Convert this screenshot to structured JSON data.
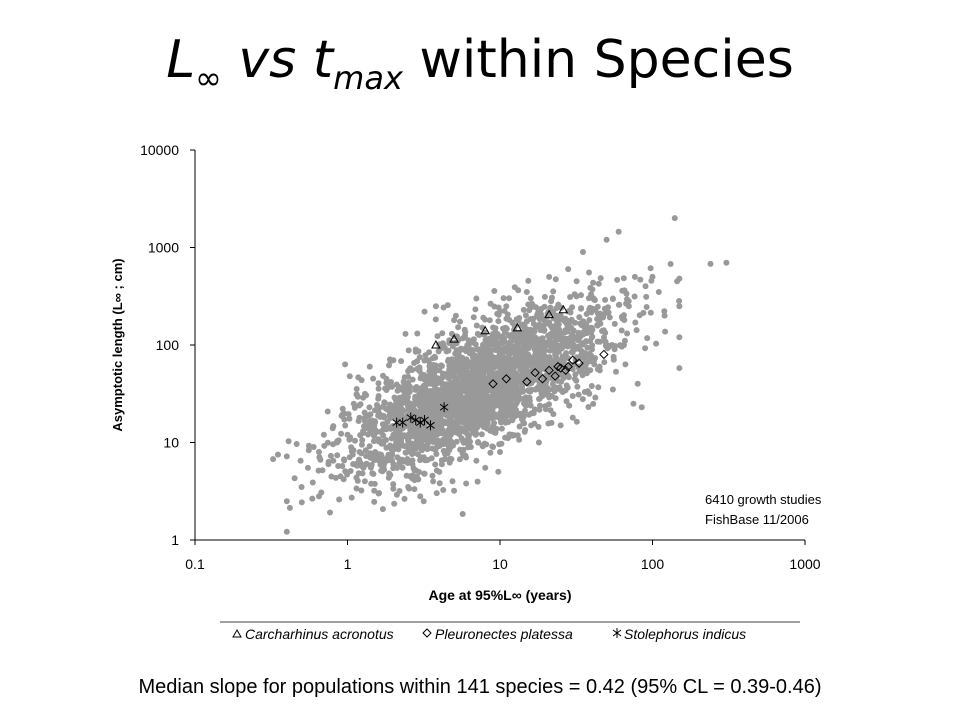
{
  "slide": {
    "title_sym": "L",
    "title_sub_inf": "∞",
    "title_vs": "vs",
    "title_t": "t",
    "title_sub_max": "max",
    "title_rest": "within Species",
    "footnote": "Median slope for populations within 141 species = 0.42 (95% CL = 0.39-0.46)"
  },
  "chart_data": {
    "type": "scatter",
    "title": "",
    "xlabel": "Age at 95%L∞ (years)",
    "ylabel": "Asymptotic length (L∞ ; cm)",
    "xscale": "log",
    "yscale": "log",
    "xlim": [
      0.1,
      1000
    ],
    "ylim": [
      1,
      10000
    ],
    "xticks": [
      0.1,
      1,
      10,
      100,
      1000
    ],
    "xtick_labels": [
      "0.1",
      "1",
      "10",
      "100",
      "1000"
    ],
    "yticks": [
      1,
      10,
      100,
      1000,
      10000
    ],
    "ytick_labels": [
      "1",
      "10",
      "100",
      "1000",
      "10000"
    ],
    "grid": false,
    "annotation": [
      "6410 growth studies",
      "FishBase 11/2006"
    ],
    "legend_position": "bottom",
    "series": [
      {
        "name": "",
        "marker": "filled-circle",
        "color": "#999999",
        "points": [
          [
            0.35,
            7.5
          ],
          [
            0.4,
            7.2
          ],
          [
            0.45,
            4.3
          ],
          [
            0.5,
            3.5
          ],
          [
            0.4,
            2.5
          ],
          [
            0.55,
            5.5
          ],
          [
            0.6,
            9
          ],
          [
            0.65,
            8
          ],
          [
            0.7,
            12
          ],
          [
            0.75,
            6
          ],
          [
            0.8,
            14
          ],
          [
            0.85,
            10
          ],
          [
            0.9,
            4.5
          ],
          [
            0.65,
            2.8
          ],
          [
            1.0,
            12
          ],
          [
            1.1,
            25
          ],
          [
            1.2,
            8
          ],
          [
            1.3,
            18
          ],
          [
            1.4,
            60
          ],
          [
            1.5,
            15
          ],
          [
            1.6,
            30
          ],
          [
            1.7,
            10
          ],
          [
            1.8,
            45
          ],
          [
            1.9,
            7
          ],
          [
            2.0,
            20
          ],
          [
            2.2,
            35
          ],
          [
            2.4,
            130
          ],
          [
            2.6,
            25
          ],
          [
            2.8,
            90
          ],
          [
            3.0,
            16
          ],
          [
            3.2,
            220
          ],
          [
            3.5,
            40
          ],
          [
            3.8,
            250
          ],
          [
            4.0,
            55
          ],
          [
            4.5,
            30
          ],
          [
            5.0,
            180
          ],
          [
            5.5,
            70
          ],
          [
            6.0,
            23
          ],
          [
            7.0,
            300
          ],
          [
            8.0,
            45
          ],
          [
            9.0,
            130
          ],
          [
            10,
            60
          ],
          [
            11,
            250
          ],
          [
            12,
            18
          ],
          [
            13,
            90
          ],
          [
            14,
            40
          ],
          [
            15,
            350
          ],
          [
            17,
            120
          ],
          [
            19,
            30
          ],
          [
            21,
            500
          ],
          [
            23,
            80
          ],
          [
            25,
            200
          ],
          [
            28,
            600
          ],
          [
            31,
            45
          ],
          [
            35,
            900
          ],
          [
            40,
            150
          ],
          [
            45,
            60
          ],
          [
            50,
            1200
          ],
          [
            55,
            300
          ],
          [
            60,
            1450
          ],
          [
            65,
            100
          ],
          [
            70,
            250
          ],
          [
            75,
            25
          ],
          [
            80,
            40
          ],
          [
            85,
            23
          ],
          [
            90,
            400
          ],
          [
            100,
            500
          ],
          [
            110,
            350
          ],
          [
            120,
            200
          ],
          [
            140,
            2000
          ],
          [
            145,
            450
          ],
          [
            150,
            480
          ],
          [
            150,
            250
          ],
          [
            150,
            120
          ],
          [
            150,
            58
          ],
          [
            240,
            680
          ],
          [
            5,
            3.2
          ],
          [
            6,
            3.8
          ],
          [
            3,
            2.8
          ],
          [
            2.5,
            3.5
          ],
          [
            1.3,
            4
          ],
          [
            1.6,
            3
          ],
          [
            2,
            6
          ],
          [
            4,
            5
          ],
          [
            7,
            6.5
          ],
          [
            9,
            9
          ],
          [
            12,
            12
          ],
          [
            16,
            15
          ],
          [
            20,
            22
          ],
          [
            30,
            30
          ],
          [
            40,
            38
          ],
          [
            55,
            35
          ],
          [
            25,
            15
          ],
          [
            30,
            18
          ],
          [
            18,
            10
          ],
          [
            10,
            8
          ],
          [
            8,
            5.5
          ]
        ]
      },
      {
        "name": "Carcharhinus acronotus",
        "marker": "triangle",
        "color": "#000000",
        "points": [
          [
            3.8,
            100
          ],
          [
            5.0,
            115
          ],
          [
            8.0,
            140
          ],
          [
            13,
            150
          ],
          [
            21,
            205
          ],
          [
            26,
            230
          ]
        ]
      },
      {
        "name": "Pleuronectes platessa",
        "marker": "diamond",
        "color": "#000000",
        "points": [
          [
            9.0,
            40
          ],
          [
            11,
            45
          ],
          [
            15,
            42
          ],
          [
            17,
            52
          ],
          [
            19,
            45
          ],
          [
            21,
            55
          ],
          [
            23,
            48
          ],
          [
            24,
            60
          ],
          [
            25,
            58
          ],
          [
            27,
            55
          ],
          [
            28,
            60
          ],
          [
            30,
            70
          ],
          [
            33,
            65
          ],
          [
            48,
            80
          ]
        ]
      },
      {
        "name": "Stolephorus indicus",
        "marker": "asterisk",
        "color": "#000000",
        "points": [
          [
            2.1,
            16
          ],
          [
            2.3,
            16
          ],
          [
            2.6,
            18
          ],
          [
            2.8,
            17
          ],
          [
            3.0,
            16
          ],
          [
            3.2,
            17
          ],
          [
            3.5,
            15
          ],
          [
            4.3,
            23
          ]
        ]
      }
    ]
  }
}
